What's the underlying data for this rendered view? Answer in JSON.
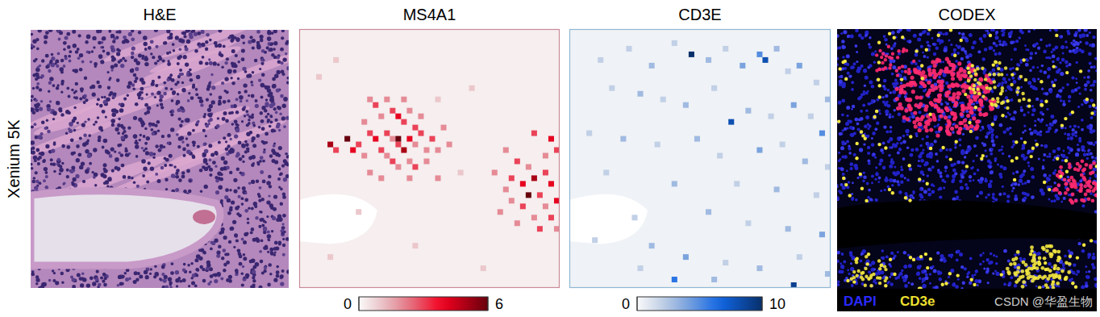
{
  "row_label": "Xenium 5K",
  "images": [
    {
      "title": "H&E"
    },
    {
      "title": "CODEX",
      "channels": [
        "DAPI",
        "CD3e"
      ]
    }
  ],
  "watermark": "CSDN @华盈生物",
  "chart_data": [
    {
      "type": "heatmap",
      "title": "MS4A1",
      "color": "#67000d",
      "tick_labels": false,
      "xlim": [
        0,
        46
      ],
      "ylim": [
        0,
        46
      ],
      "color_range": [
        0,
        6
      ],
      "color_ticks": [
        0,
        6
      ],
      "cells": [
        [
          12,
          12,
          2
        ],
        [
          13,
          13,
          3
        ],
        [
          15,
          12,
          2
        ],
        [
          16,
          14,
          3
        ],
        [
          14,
          15,
          2
        ],
        [
          17,
          15,
          4
        ],
        [
          18,
          16,
          3
        ],
        [
          19,
          14,
          2
        ],
        [
          20,
          17,
          3
        ],
        [
          11,
          16,
          2
        ],
        [
          12,
          18,
          3
        ],
        [
          13,
          19,
          4
        ],
        [
          15,
          18,
          3
        ],
        [
          16,
          19,
          2
        ],
        [
          17,
          20,
          3
        ],
        [
          18,
          21,
          5
        ],
        [
          19,
          19,
          4
        ],
        [
          20,
          20,
          2
        ],
        [
          21,
          18,
          3
        ],
        [
          22,
          21,
          2
        ],
        [
          14,
          21,
          3
        ],
        [
          15,
          22,
          2
        ],
        [
          10,
          20,
          3
        ],
        [
          9,
          21,
          4
        ],
        [
          5,
          20,
          5
        ],
        [
          6,
          21,
          3
        ],
        [
          8,
          19,
          6
        ],
        [
          11,
          22,
          2
        ],
        [
          16,
          23,
          3
        ],
        [
          17,
          24,
          2
        ],
        [
          19,
          23,
          2
        ],
        [
          20,
          24,
          3
        ],
        [
          22,
          23,
          2
        ],
        [
          23,
          19,
          3
        ],
        [
          24,
          21,
          2
        ],
        [
          25,
          17,
          2
        ],
        [
          26,
          20,
          2
        ],
        [
          18,
          12,
          2
        ],
        [
          21,
          15,
          2
        ],
        [
          12,
          25,
          2
        ],
        [
          14,
          26,
          2
        ],
        [
          24,
          26,
          2
        ],
        [
          19,
          26,
          2
        ],
        [
          17,
          19,
          6
        ],
        [
          41,
          18,
          3
        ],
        [
          44,
          19,
          4
        ],
        [
          45,
          21,
          3
        ],
        [
          43,
          22,
          2
        ],
        [
          36,
          21,
          2
        ],
        [
          38,
          23,
          3
        ],
        [
          40,
          24,
          2
        ],
        [
          34,
          25,
          2
        ],
        [
          37,
          26,
          3
        ],
        [
          39,
          27,
          4
        ],
        [
          41,
          26,
          5
        ],
        [
          43,
          25,
          3
        ],
        [
          44,
          27,
          4
        ],
        [
          40,
          29,
          6
        ],
        [
          42,
          29,
          3
        ],
        [
          45,
          30,
          4
        ],
        [
          37,
          30,
          2
        ],
        [
          39,
          31,
          3
        ],
        [
          43,
          31,
          2
        ],
        [
          44,
          33,
          3
        ],
        [
          41,
          33,
          2
        ],
        [
          36,
          28,
          2
        ],
        [
          38,
          34,
          2
        ],
        [
          45,
          35,
          2
        ],
        [
          42,
          35,
          3
        ],
        [
          35,
          32,
          2
        ],
        [
          3,
          8,
          1
        ],
        [
          6,
          5,
          1
        ],
        [
          24,
          12,
          1
        ],
        [
          30,
          10,
          1
        ],
        [
          28,
          25,
          1
        ],
        [
          10,
          32,
          1
        ],
        [
          20,
          38,
          1
        ],
        [
          32,
          42,
          1
        ],
        [
          5,
          40,
          1
        ]
      ]
    },
    {
      "type": "heatmap",
      "title": "CD3E",
      "color": "#08306b",
      "tick_labels": false,
      "xlim": [
        0,
        46
      ],
      "ylim": [
        0,
        46
      ],
      "color_range": [
        0,
        10
      ],
      "color_ticks": [
        0,
        10
      ],
      "cells": [
        [
          5,
          5,
          2
        ],
        [
          10,
          3,
          2
        ],
        [
          14,
          6,
          3
        ],
        [
          18,
          2,
          2
        ],
        [
          21,
          4,
          10
        ],
        [
          24,
          5,
          3
        ],
        [
          27,
          3,
          2
        ],
        [
          30,
          6,
          4
        ],
        [
          33,
          4,
          5
        ],
        [
          34,
          5,
          8
        ],
        [
          36,
          3,
          3
        ],
        [
          38,
          7,
          2
        ],
        [
          40,
          6,
          4
        ],
        [
          43,
          9,
          2
        ],
        [
          45,
          12,
          3
        ],
        [
          7,
          10,
          2
        ],
        [
          12,
          11,
          3
        ],
        [
          16,
          12,
          2
        ],
        [
          20,
          13,
          3
        ],
        [
          25,
          10,
          2
        ],
        [
          28,
          16,
          8
        ],
        [
          31,
          14,
          3
        ],
        [
          35,
          15,
          2
        ],
        [
          39,
          13,
          4
        ],
        [
          42,
          15,
          2
        ],
        [
          44,
          18,
          5
        ],
        [
          3,
          18,
          2
        ],
        [
          9,
          19,
          3
        ],
        [
          15,
          20,
          2
        ],
        [
          22,
          19,
          3
        ],
        [
          26,
          22,
          2
        ],
        [
          33,
          21,
          4
        ],
        [
          37,
          20,
          2
        ],
        [
          41,
          23,
          3
        ],
        [
          45,
          24,
          2
        ],
        [
          6,
          25,
          2
        ],
        [
          18,
          27,
          3
        ],
        [
          29,
          27,
          2
        ],
        [
          36,
          28,
          3
        ],
        [
          43,
          29,
          2
        ],
        [
          11,
          33,
          2
        ],
        [
          24,
          32,
          3
        ],
        [
          31,
          34,
          2
        ],
        [
          38,
          35,
          3
        ],
        [
          44,
          36,
          4
        ],
        [
          4,
          37,
          2
        ],
        [
          14,
          38,
          3
        ],
        [
          20,
          40,
          4
        ],
        [
          27,
          41,
          2
        ],
        [
          33,
          42,
          3
        ],
        [
          40,
          40,
          2
        ],
        [
          18,
          44,
          6
        ],
        [
          25,
          44,
          3
        ],
        [
          39,
          45,
          9
        ],
        [
          45,
          43,
          3
        ],
        [
          12,
          42,
          2
        ]
      ]
    }
  ]
}
